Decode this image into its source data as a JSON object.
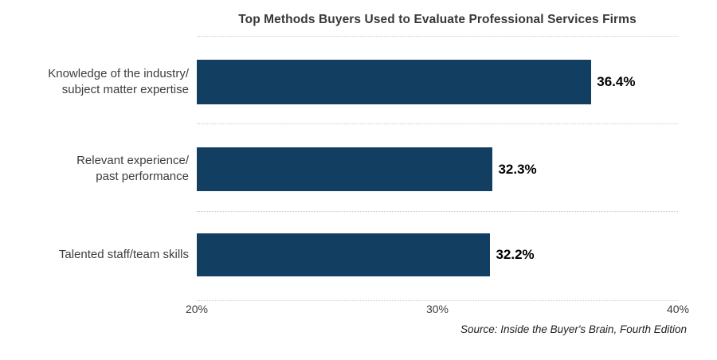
{
  "title": "Top Methods Buyers Used to Evaluate Professional Services Firms",
  "source": "Source: Inside the Buyer's Brain, Fourth Edition",
  "colors": {
    "bar": "#123e62",
    "title_text": "#383838",
    "label_text": "#3d3d3d",
    "value_text": "#000000",
    "gridline": "#c9c9c9",
    "background": "#ffffff"
  },
  "chart_data": {
    "type": "bar",
    "orientation": "horizontal",
    "title": "Top Methods Buyers Used to Evaluate Professional Services Firms",
    "categories": [
      "Knowledge of the industry/\nsubject matter expertise",
      "Relevant experience/\npast performance",
      "Talented staff/team skills"
    ],
    "values": [
      36.4,
      32.3,
      32.2
    ],
    "data_labels": [
      "36.4%",
      "32.3%",
      "32.2%"
    ],
    "xlabel": "",
    "ylabel": "",
    "xlim": [
      20,
      40
    ],
    "x_ticks": [
      "20%",
      "30%",
      "40%"
    ],
    "grid": "horizontal dotted separators between bars",
    "legend": false,
    "source": "Source: Inside the Buyer's Brain, Fourth Edition"
  }
}
